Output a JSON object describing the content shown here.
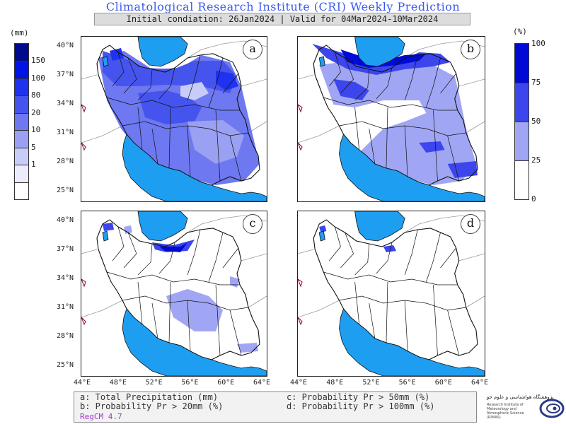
{
  "header": {
    "title": "Climatological Research Institute (CRI) Weekly Prediction",
    "subtitle": "Initial condiation: 26Jan2024 | Valid for 04Mar2024-10Mar2024"
  },
  "colorbar_left": {
    "unit": "(mm)",
    "labels": [
      "150",
      "100",
      "80",
      "20",
      "10",
      "5",
      "1"
    ],
    "colors": [
      "#000a8c",
      "#0014e6",
      "#1e32f0",
      "#4654ee",
      "#6e78f0",
      "#9aa0f2",
      "#c8ccf8",
      "#ececfc",
      "#ffffff"
    ]
  },
  "colorbar_right": {
    "unit": "(%)",
    "labels": [
      "100",
      "75",
      "50",
      "25",
      "0"
    ],
    "colors": [
      "#000ad6",
      "#3c46ec",
      "#a0a6f4",
      "#ffffff"
    ]
  },
  "panels": [
    {
      "label": "a",
      "lat_ticks": [
        "40°N",
        "37°N",
        "34°N",
        "31°N",
        "28°N",
        "25°N"
      ]
    },
    {
      "label": "b",
      "lat_ticks": []
    },
    {
      "label": "c",
      "lat_ticks": [
        "40°N",
        "37°N",
        "34°N",
        "31°N",
        "28°N",
        "25°N"
      ]
    },
    {
      "label": "d",
      "lat_ticks": []
    }
  ],
  "lon_ticks": [
    "44°E",
    "48°E",
    "52°E",
    "56°E",
    "60°E",
    "64°E"
  ],
  "legend": {
    "a": "a: Total Precipitation (mm)",
    "b": "b: Probability Pr > 20mm (%)",
    "c": "c: Probability Pr > 50mm (%)",
    "d": "d: Probability Pr > 100mm (%)",
    "model": "RegCM 4.7"
  },
  "logo": {
    "fa_text": "پژوهشگاه هواشناسی و علوم جو",
    "en_text": "Research Institute of Meteorology and Atmospheric Science (RIMAS)"
  },
  "colors": {
    "sea": "#1e9ef0",
    "border": "#111111"
  }
}
